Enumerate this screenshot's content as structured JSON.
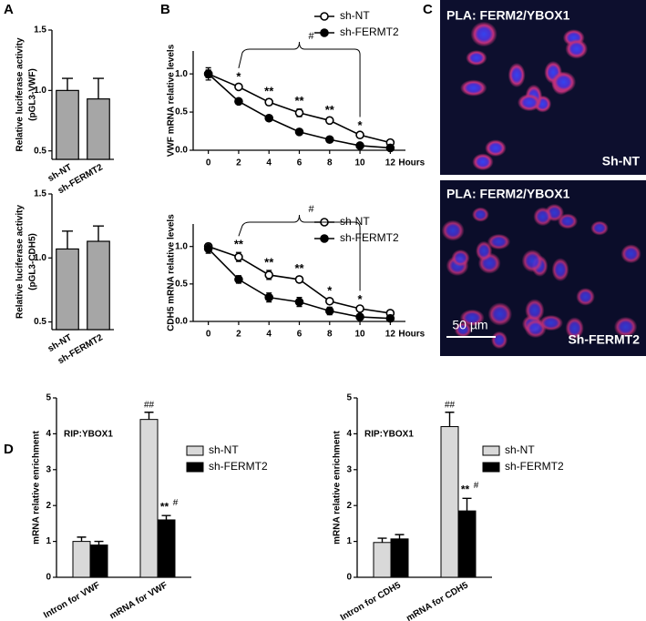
{
  "panel_labels": [
    "A",
    "B",
    "C",
    "D"
  ],
  "images": [
    {
      "title": "PLA: FERM2/YBOX1",
      "label": "Sh-NT"
    },
    {
      "title": "PLA: FERM2/YBOX1",
      "label": "Sh-FERMT2",
      "scale_bar": "50 µm"
    }
  ],
  "chart_data": [
    {
      "type": "bar",
      "ylabel": [
        "Relative luciferase activity",
        "(pGL3-VWF)"
      ],
      "categories": [
        "sh-NT",
        "sh-FERMT2"
      ],
      "values": [
        1.0,
        0.93
      ],
      "errors": [
        0.1,
        0.17
      ],
      "color": "#a6a6a6",
      "ylim": [
        0.43,
        1.5
      ],
      "yticks": [
        0.5,
        {
          "value": 1,
          "label": "1.0"
        },
        1.5
      ]
    },
    {
      "type": "bar",
      "ylabel": [
        "Relative luciferase activity",
        "(pGL3-CDH5)"
      ],
      "categories": [
        "sh-NT",
        "sh-FERMT2"
      ],
      "values": [
        1.07,
        1.13
      ],
      "errors": [
        0.14,
        0.12
      ],
      "color": "#a6a6a6",
      "ylim": [
        0.44,
        1.5
      ],
      "yticks": [
        0.5,
        {
          "value": 1,
          "label": "1.0"
        },
        1.5
      ]
    },
    {
      "type": "line",
      "ylabel": "VWF mRNA relative levels",
      "xlabel": "Hours",
      "x": [
        0,
        2,
        4,
        6,
        8,
        10,
        12
      ],
      "xlim": [
        -1,
        13
      ],
      "xticks": [
        0,
        2,
        4,
        6,
        8,
        10,
        12
      ],
      "ylim": [
        0,
        1.3
      ],
      "yticks": [
        {
          "value": 0,
          "label": "0.0"
        },
        0.5,
        {
          "value": 1,
          "label": "1.0"
        }
      ],
      "series": [
        {
          "name": "sh-NT",
          "color": "#000000",
          "marker": "open",
          "values": [
            1.0,
            0.83,
            0.63,
            0.49,
            0.39,
            0.2,
            0.1
          ],
          "errors": [
            0.05,
            0.03,
            0.04,
            0.05,
            0.03,
            0.02,
            0.01
          ]
        },
        {
          "name": "sh-FERMT2",
          "color": "#000000",
          "marker": "filled",
          "values": [
            1.0,
            0.64,
            0.42,
            0.24,
            0.14,
            0.06,
            0.03
          ],
          "errors": [
            0.08,
            0.03,
            0.03,
            0.03,
            0.01,
            0.01,
            0.01
          ]
        }
      ],
      "significance": [
        null,
        "*",
        "**",
        "**",
        "**",
        "*",
        null
      ],
      "bracket_label": "#"
    },
    {
      "type": "line",
      "ylabel": "CDH5 mRNA relative levels",
      "xlabel": "Hours",
      "x": [
        0,
        2,
        4,
        6,
        8,
        10,
        12
      ],
      "xlim": [
        -1,
        13
      ],
      "xticks": [
        0,
        2,
        4,
        6,
        8,
        10,
        12
      ],
      "ylim": [
        0,
        1.3
      ],
      "yticks": [
        {
          "value": 0,
          "label": "0.0"
        },
        0.5,
        {
          "value": 1,
          "label": "1.0"
        }
      ],
      "series": [
        {
          "name": "sh-NT",
          "color": "#000000",
          "marker": "open",
          "values": [
            1.0,
            0.86,
            0.62,
            0.56,
            0.27,
            0.17,
            0.11
          ],
          "errors": [
            0.04,
            0.06,
            0.06,
            0.04,
            0.03,
            0.02,
            0.02
          ]
        },
        {
          "name": "sh-FERMT2",
          "color": "#000000",
          "marker": "filled",
          "values": [
            0.97,
            0.56,
            0.32,
            0.26,
            0.14,
            0.06,
            0.04
          ],
          "errors": [
            0.06,
            0.05,
            0.06,
            0.06,
            0.05,
            0.02,
            0.01
          ]
        }
      ],
      "significance": [
        null,
        "**",
        "**",
        "**",
        "*",
        "*",
        null
      ],
      "bracket_label": "#"
    },
    {
      "type": "grouped-bar",
      "ylabel": "mRNA relative enrichment",
      "annotation": "RIP:YBOX1",
      "categories": [
        "Intron for VWF",
        "mRNA for VWF"
      ],
      "ylim": [
        0,
        5
      ],
      "yticks": [
        0,
        1,
        2,
        3,
        4,
        5
      ],
      "series": [
        {
          "name": "sh-NT",
          "color": "#d9d9d9",
          "values": [
            1.0,
            4.4
          ],
          "errors": [
            0.12,
            0.2
          ],
          "significance": [
            null,
            null
          ],
          "hash": [
            null,
            "##"
          ]
        },
        {
          "name": "sh-FERMT2",
          "color": "#000000",
          "values": [
            0.9,
            1.6
          ],
          "errors": [
            0.1,
            0.12
          ],
          "significance": [
            null,
            "**"
          ],
          "hash": [
            null,
            "#"
          ]
        }
      ]
    },
    {
      "type": "grouped-bar",
      "ylabel": "mRNA relative enrichment",
      "annotation": "RIP:YBOX1",
      "categories": [
        "Intron for CDH5",
        "mRNA for CDH5"
      ],
      "ylim": [
        0,
        5
      ],
      "yticks": [
        0,
        1,
        2,
        3,
        4,
        5
      ],
      "series": [
        {
          "name": "sh-NT",
          "color": "#d9d9d9",
          "values": [
            0.97,
            4.2
          ],
          "errors": [
            0.12,
            0.4
          ],
          "significance": [
            null,
            null
          ],
          "hash": [
            null,
            "##"
          ]
        },
        {
          "name": "sh-FERMT2",
          "color": "#000000",
          "values": [
            1.07,
            1.85
          ],
          "errors": [
            0.12,
            0.35
          ],
          "significance": [
            null,
            "**"
          ],
          "hash": [
            null,
            "#"
          ]
        }
      ]
    }
  ]
}
